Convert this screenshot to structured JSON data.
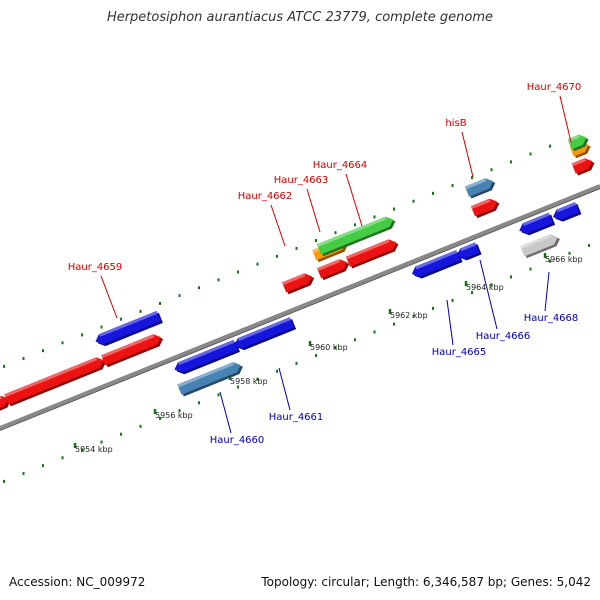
{
  "title": "Herpetosiphon aurantiacus ATCC 23779, complete genome",
  "footer": {
    "accession": "Accession: NC_009972",
    "topology": "Topology: circular; Length: 6,346,587 bp; Genes: 5,042"
  },
  "colors": {
    "forward_cds": "#ee1111",
    "reverse_cds": "#1515dd",
    "steelblue_cds": "#4682b4",
    "gray_cds": "#c8c8c8",
    "green_cds": "#44cc44",
    "orange_cds": "#ff9900",
    "backbone": "#888888",
    "tick": "#117711",
    "label_forward": "#cc0000",
    "label_reverse": "#0000aa"
  },
  "kbp_ticks": [
    "5954 kbp",
    "5956 kbp",
    "5958 kbp",
    "5960 kbp",
    "5962 kbp",
    "5964 kbp",
    "5966 kbp"
  ],
  "gene_labels_top": [
    "Haur_4659",
    "Haur_4662",
    "Haur_4663",
    "Haur_4664",
    "hisB",
    "Haur_4670"
  ],
  "gene_labels_bottom": [
    "Haur_4660",
    "Haur_4661",
    "Haur_4665",
    "Haur_4666",
    "Haur_4668"
  ]
}
